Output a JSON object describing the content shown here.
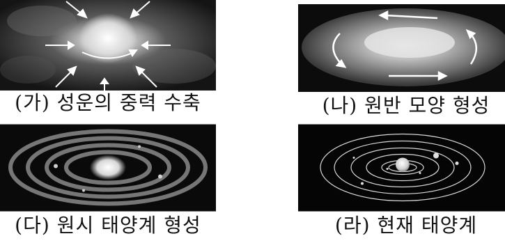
{
  "panels": [
    {
      "caption": "(가) 성운의 중력 수축"
    },
    {
      "caption": "(나) 원반 모양 형성"
    },
    {
      "caption": "(다) 원시 태양계 형성"
    },
    {
      "caption": "(라) 현재 태양계"
    }
  ]
}
